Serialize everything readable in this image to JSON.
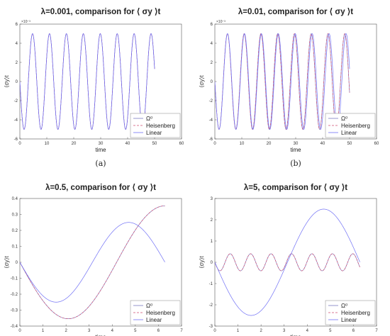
{
  "colors": {
    "omega0": "#7a7ac0",
    "heisenberg": "#d04f72",
    "linear": "#6f6ff5",
    "axis": "#555555",
    "grid_bg": "#ffffff"
  },
  "chart_data": [
    {
      "type": "line",
      "title": "λ=0.001, comparison for ⟨ σy ⟩t",
      "xlabel": "time",
      "ylabel": "⟨σy⟩t",
      "xlim": [
        0,
        60
      ],
      "ylim": [
        -0.006,
        0.006
      ],
      "y_scale_note": "×10⁻³",
      "xticks": [
        "0",
        "10",
        "20",
        "30",
        "40",
        "50",
        "60"
      ],
      "yticks": [
        "6",
        "4",
        "2",
        "0",
        "-2",
        "-4",
        "-6"
      ],
      "x_range": [
        0,
        50
      ],
      "series": [
        {
          "name": "Ω⁰",
          "style": "solid",
          "formula": "-0.005*sin(t)"
        },
        {
          "name": "Heisenberg",
          "style": "dashed",
          "formula": "-0.005*sin(t)"
        },
        {
          "name": "Linear",
          "style": "solid",
          "formula": "-0.005*sin(t)"
        }
      ],
      "legend": "bottom-right",
      "caption": "(a)"
    },
    {
      "type": "line",
      "title": "λ=0.01, comparison for ⟨ σy ⟩t",
      "xlabel": "time",
      "ylabel": "⟨σy⟩t",
      "xlim": [
        0,
        60
      ],
      "ylim": [
        -0.006,
        0.006
      ],
      "y_scale_note": "×10⁻³",
      "xticks": [
        "0",
        "10",
        "20",
        "30",
        "40",
        "50",
        "60"
      ],
      "yticks": [
        "6",
        "4",
        "2",
        "0",
        "-2",
        "-4",
        "-6"
      ],
      "x_range": [
        0,
        50
      ],
      "series": [
        {
          "name": "Ω⁰",
          "style": "solid",
          "formula": "-0.005*sin(1.01*t)"
        },
        {
          "name": "Heisenberg",
          "style": "dashed",
          "formula": "-0.005*sin(1.01*t)"
        },
        {
          "name": "Linear",
          "style": "solid",
          "formula": "-0.005*sin(t)"
        }
      ],
      "legend": "bottom-right",
      "caption": "(b)"
    },
    {
      "type": "line",
      "title": "λ=0.5, comparison for ⟨ σy ⟩t",
      "xlabel": "time",
      "ylabel": "⟨σy⟩t",
      "xlim": [
        0,
        7
      ],
      "ylim": [
        -0.4,
        0.4
      ],
      "xticks": [
        "0",
        "1",
        "2",
        "3",
        "4",
        "5",
        "6",
        "7"
      ],
      "yticks": [
        "0.4",
        "0.3",
        "0.2",
        "0.1",
        "0",
        "-0.1",
        "-0.2",
        "-0.3",
        "-0.4"
      ],
      "x_range": [
        0,
        6.28
      ],
      "series": [
        {
          "name": "Ω⁰",
          "style": "solid",
          "formula": "-0.354*sin(0.75*t)"
        },
        {
          "name": "Heisenberg",
          "style": "dashed",
          "formula": "-0.354*sin(0.75*t)"
        },
        {
          "name": "Linear",
          "style": "solid",
          "formula": "-0.25*sin(t)"
        }
      ],
      "legend": "bottom-right",
      "caption": ""
    },
    {
      "type": "line",
      "title": "λ=5, comparison for ⟨ σy ⟩t",
      "xlabel": "time",
      "ylabel": "⟨σy⟩t",
      "xlim": [
        0,
        7
      ],
      "ylim": [
        -3,
        3
      ],
      "xticks": [
        "0",
        "1",
        "2",
        "3",
        "4",
        "5",
        "6",
        "7"
      ],
      "yticks": [
        "3",
        "2",
        "1",
        "0",
        "-1",
        "-2",
        "-3"
      ],
      "x_range": [
        0,
        6.28
      ],
      "series": [
        {
          "name": "Ω⁰",
          "style": "solid",
          "formula": "-0.4*sin(7.1*t)"
        },
        {
          "name": "Heisenberg",
          "style": "dashed",
          "formula": "-0.4*sin(7.1*t)"
        },
        {
          "name": "Linear",
          "style": "solid",
          "formula": "-2.5*sin(t)"
        }
      ],
      "legend": "bottom-right",
      "caption": ""
    }
  ]
}
